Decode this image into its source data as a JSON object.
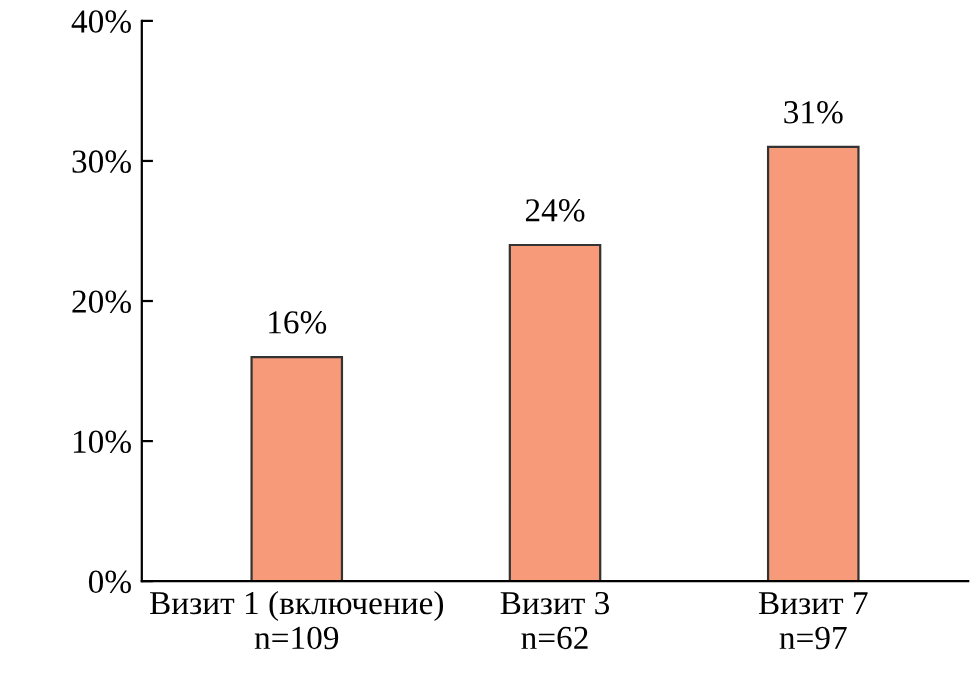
{
  "chart_data": {
    "type": "bar",
    "categories": [
      "Визит 1 (включение)\nn=109",
      "Визит 3\nn=62",
      "Визит 7\nn=97"
    ],
    "values": [
      16,
      24,
      31
    ],
    "value_labels": [
      "16%",
      "24%",
      "31%"
    ],
    "color": "#f79a7a",
    "ylim": [
      0,
      40
    ],
    "yticks": [
      {
        "value": 0,
        "label": "0%"
      },
      {
        "value": 10,
        "label": "10%"
      },
      {
        "value": 20,
        "label": "20%"
      },
      {
        "value": 30,
        "label": "30%"
      },
      {
        "value": 40,
        "label": "40%"
      }
    ],
    "grid": false,
    "legend": false
  }
}
